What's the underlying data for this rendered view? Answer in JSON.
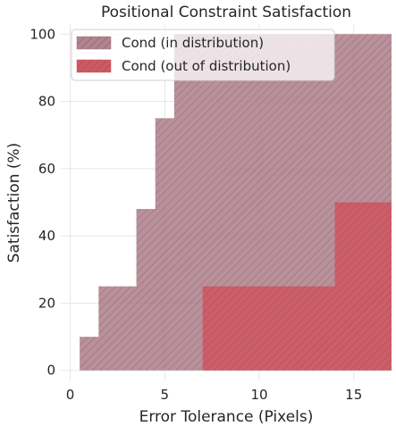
{
  "chart_data": {
    "type": "area",
    "title": "Positional Constraint Satisfaction",
    "xlabel": "Error Tolerance (Pixels)",
    "ylabel": "Satisfaction (%)",
    "xlim": [
      -0.5,
      17
    ],
    "ylim": [
      -3,
      103
    ],
    "x_ticks": [
      0,
      5,
      10,
      15
    ],
    "y_ticks": [
      0,
      20,
      40,
      60,
      80,
      100
    ],
    "grid": true,
    "legend_position": "top-left",
    "series": [
      {
        "name": "Cond (in distribution)",
        "color": "#a8737f",
        "hatch": "diagonal",
        "step_x": [
          0,
          0.5,
          1.5,
          3.5,
          4.5,
          5.5,
          17
        ],
        "step_y": [
          0,
          10,
          25,
          48,
          75,
          100,
          100
        ]
      },
      {
        "name": "Cond (out of distribution)",
        "color": "#cc545f",
        "hatch": "diagonal",
        "step_x": [
          7,
          14,
          17
        ],
        "step_y": [
          25,
          50,
          50
        ]
      }
    ]
  }
}
